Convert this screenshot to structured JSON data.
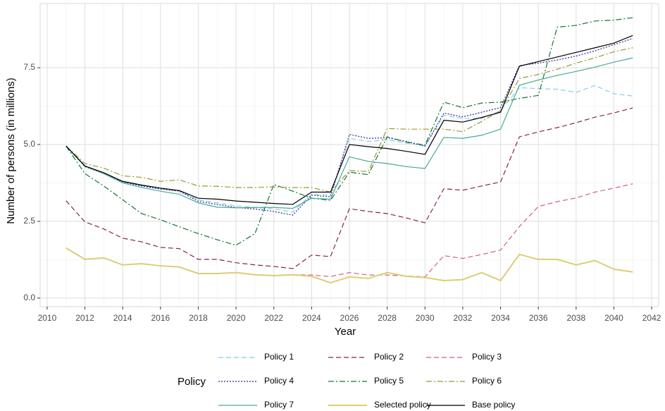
{
  "chart_data": {
    "type": "line",
    "x_label": "Year",
    "y_label": "Number of persons (in millions)",
    "legend_title": "Policy",
    "x": [
      2011,
      2012,
      2013,
      2014,
      2015,
      2016,
      2017,
      2018,
      2019,
      2020,
      2021,
      2022,
      2023,
      2024,
      2025,
      2026,
      2027,
      2028,
      2029,
      2030,
      2031,
      2032,
      2033,
      2034,
      2035,
      2036,
      2037,
      2038,
      2039,
      2040,
      2041
    ],
    "xlim": [
      2009.63,
      2042.37
    ],
    "xticks": [
      2010,
      2012,
      2014,
      2016,
      2018,
      2020,
      2022,
      2024,
      2026,
      2028,
      2030,
      2032,
      2034,
      2036,
      2038,
      2040,
      2042
    ],
    "ylim": [
      -0.28,
      9.59
    ],
    "yticks": [
      {
        "value": 0,
        "label": "0.0"
      },
      2.5,
      {
        "value": 5,
        "label": "5.0"
      },
      7.5
    ],
    "grid": true,
    "legend_position": "bottom",
    "series": [
      {
        "name": "Policy 1",
        "color": "#88ccee",
        "linestyle": "dashed",
        "values": [
          4.95,
          4.29,
          4.06,
          3.79,
          3.66,
          3.56,
          3.49,
          3.2,
          3.1,
          3.0,
          2.95,
          2.9,
          2.8,
          3.38,
          3.35,
          5.2,
          5.1,
          5.15,
          5.05,
          4.95,
          5.95,
          5.85,
          5.85,
          6.1,
          6.85,
          6.82,
          6.8,
          6.7,
          6.92,
          6.65,
          6.58
        ]
      },
      {
        "name": "Policy 2",
        "color": "#882255",
        "linestyle": "dashed",
        "values": [
          3.17,
          2.48,
          2.25,
          1.95,
          1.83,
          1.65,
          1.61,
          1.26,
          1.26,
          1.15,
          1.08,
          1.03,
          0.96,
          1.4,
          1.35,
          2.91,
          2.82,
          2.75,
          2.61,
          2.45,
          3.56,
          3.51,
          3.65,
          3.78,
          5.25,
          5.41,
          5.55,
          5.71,
          5.89,
          6.03,
          6.19
        ]
      },
      {
        "name": "Policy 3",
        "color": "#cc6677",
        "linestyle": "dashed",
        "values": [
          1.63,
          1.26,
          1.31,
          1.08,
          1.12,
          1.05,
          1.01,
          0.8,
          0.8,
          0.83,
          0.76,
          0.73,
          0.76,
          0.75,
          0.7,
          0.83,
          0.75,
          0.75,
          0.72,
          0.69,
          1.38,
          1.29,
          1.42,
          1.56,
          2.33,
          2.98,
          3.14,
          3.26,
          3.45,
          3.58,
          3.72
        ]
      },
      {
        "name": "Policy 4",
        "color": "#332288",
        "linestyle": "dotted",
        "values": [
          4.95,
          4.28,
          4.05,
          3.78,
          3.65,
          3.55,
          3.48,
          3.15,
          3.05,
          2.95,
          2.9,
          2.82,
          2.7,
          3.35,
          3.3,
          5.33,
          5.2,
          5.22,
          5.1,
          4.95,
          6.02,
          5.9,
          6.05,
          6.2,
          7.57,
          7.65,
          7.75,
          7.88,
          8.05,
          8.25,
          8.45
        ]
      },
      {
        "name": "Policy 5",
        "color": "#117733",
        "linestyle": "dashdot",
        "values": [
          4.95,
          4.05,
          3.65,
          3.2,
          2.75,
          2.55,
          2.32,
          2.1,
          1.9,
          1.72,
          2.1,
          3.7,
          3.48,
          3.25,
          3.18,
          4.1,
          4.02,
          5.25,
          5.08,
          4.98,
          6.38,
          6.2,
          6.35,
          6.38,
          6.5,
          6.6,
          8.82,
          8.88,
          9.02,
          9.05,
          9.13
        ]
      },
      {
        "name": "Policy 6",
        "color": "#999933",
        "linestyle": "dashdot",
        "values": [
          4.95,
          4.38,
          4.23,
          3.98,
          3.93,
          3.8,
          3.85,
          3.65,
          3.64,
          3.6,
          3.6,
          3.62,
          3.6,
          3.6,
          3.45,
          4.15,
          4.12,
          5.52,
          5.5,
          5.5,
          5.5,
          5.42,
          5.75,
          6.1,
          7.15,
          7.28,
          7.45,
          7.65,
          7.82,
          8.02,
          8.15
        ]
      },
      {
        "name": "Policy 7",
        "color": "#44aa99",
        "linestyle": "solid",
        "values": [
          4.95,
          4.3,
          4.05,
          3.75,
          3.6,
          3.48,
          3.38,
          3.1,
          2.96,
          2.94,
          2.95,
          2.95,
          2.92,
          3.25,
          3.22,
          4.6,
          4.45,
          4.38,
          4.28,
          4.22,
          5.23,
          5.2,
          5.3,
          5.5,
          6.93,
          7.1,
          7.25,
          7.38,
          7.52,
          7.68,
          7.82
        ]
      },
      {
        "name": "Selected policy",
        "color": "#ddcc77",
        "linestyle": "solid",
        "values": [
          1.63,
          1.26,
          1.31,
          1.08,
          1.12,
          1.05,
          1.01,
          0.8,
          0.8,
          0.83,
          0.76,
          0.73,
          0.76,
          0.71,
          0.5,
          0.69,
          0.64,
          0.83,
          0.71,
          0.67,
          0.57,
          0.6,
          0.83,
          0.57,
          1.42,
          1.26,
          1.26,
          1.08,
          1.22,
          0.94,
          0.85
        ]
      },
      {
        "name": "Base policy",
        "color": "#000000",
        "linestyle": "solid",
        "values": [
          4.95,
          4.3,
          4.08,
          3.8,
          3.68,
          3.58,
          3.5,
          3.25,
          3.22,
          3.16,
          3.12,
          3.08,
          3.05,
          3.45,
          3.45,
          5.0,
          4.93,
          4.87,
          4.78,
          4.68,
          5.79,
          5.73,
          5.88,
          6.05,
          7.55,
          7.7,
          7.85,
          8.0,
          8.15,
          8.3,
          8.55
        ]
      }
    ]
  }
}
